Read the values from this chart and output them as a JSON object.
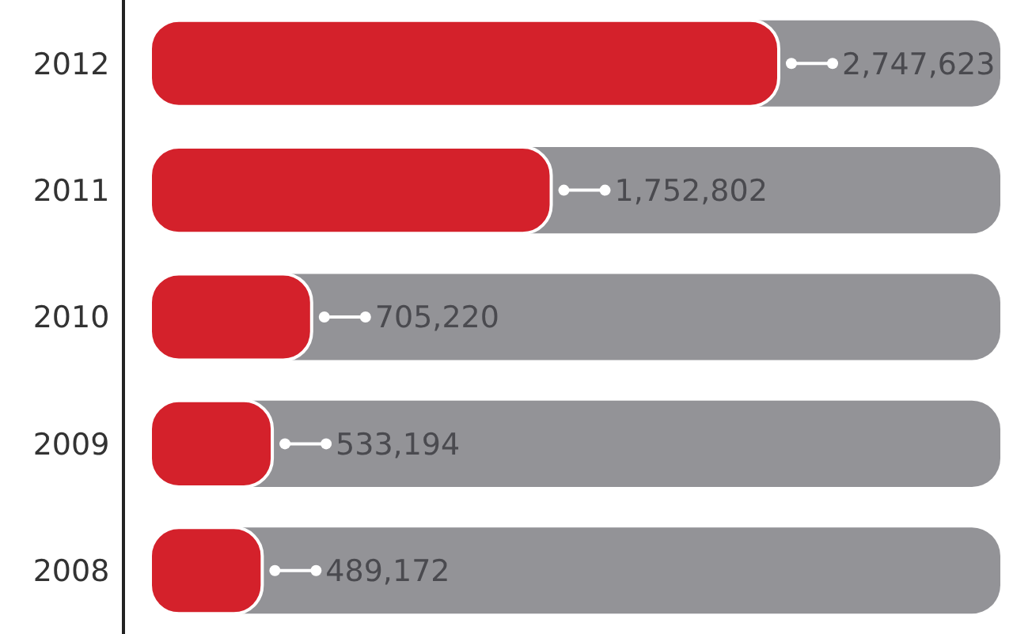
{
  "chart_data": {
    "type": "bar",
    "orientation": "horizontal",
    "categories": [
      "2012",
      "2011",
      "2010",
      "2009",
      "2008"
    ],
    "values": [
      2747623,
      1752802,
      705220,
      533194,
      489172
    ],
    "value_labels": [
      "2,747,623",
      "1,752,802",
      "705,220",
      "533,194",
      "489,172"
    ],
    "color": "#d4212b"
  }
}
